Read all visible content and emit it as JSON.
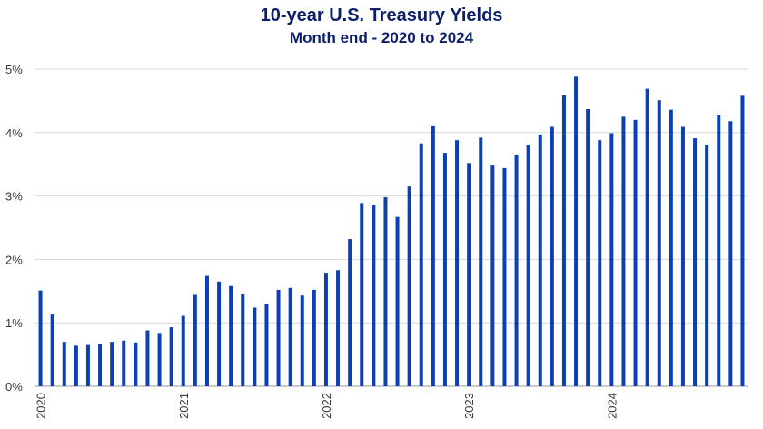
{
  "chart_data": {
    "type": "bar",
    "title": "10-year U.S. Treasury Yields",
    "subtitle": "Month end - 2020 to 2024",
    "xlabel": "",
    "ylabel": "",
    "ylim": [
      0,
      5
    ],
    "yticks": [
      0,
      1,
      2,
      3,
      4,
      5
    ],
    "ytick_labels": [
      "0%",
      "1%",
      "2%",
      "3%",
      "4%",
      "5%"
    ],
    "xtick_labels": [
      "2020",
      "2021",
      "2022",
      "2023",
      "2024"
    ],
    "grid": true,
    "color": "#0b3fb5",
    "categories": [
      "2020-01",
      "2020-02",
      "2020-03",
      "2020-04",
      "2020-05",
      "2020-06",
      "2020-07",
      "2020-08",
      "2020-09",
      "2020-10",
      "2020-11",
      "2020-12",
      "2021-01",
      "2021-02",
      "2021-03",
      "2021-04",
      "2021-05",
      "2021-06",
      "2021-07",
      "2021-08",
      "2021-09",
      "2021-10",
      "2021-11",
      "2021-12",
      "2022-01",
      "2022-02",
      "2022-03",
      "2022-04",
      "2022-05",
      "2022-06",
      "2022-07",
      "2022-08",
      "2022-09",
      "2022-10",
      "2022-11",
      "2022-12",
      "2023-01",
      "2023-02",
      "2023-03",
      "2023-04",
      "2023-05",
      "2023-06",
      "2023-07",
      "2023-08",
      "2023-09",
      "2023-10",
      "2023-11",
      "2023-12",
      "2024-01",
      "2024-02",
      "2024-03",
      "2024-04",
      "2024-05",
      "2024-06",
      "2024-07",
      "2024-08",
      "2024-09",
      "2024-10",
      "2024-11",
      "2024-12"
    ],
    "values": [
      1.51,
      1.13,
      0.7,
      0.64,
      0.65,
      0.66,
      0.7,
      0.72,
      0.69,
      0.88,
      0.84,
      0.93,
      1.11,
      1.44,
      1.74,
      1.65,
      1.58,
      1.45,
      1.24,
      1.3,
      1.52,
      1.55,
      1.43,
      1.52,
      1.79,
      1.83,
      2.32,
      2.89,
      2.85,
      2.98,
      2.67,
      3.15,
      3.83,
      4.1,
      3.68,
      3.88,
      3.52,
      3.92,
      3.48,
      3.44,
      3.65,
      3.81,
      3.97,
      4.09,
      4.59,
      4.88,
      4.37,
      3.88,
      3.99,
      4.25,
      4.2,
      4.69,
      4.51,
      4.36,
      4.09,
      3.91,
      3.81,
      4.28,
      4.18,
      4.58
    ]
  }
}
